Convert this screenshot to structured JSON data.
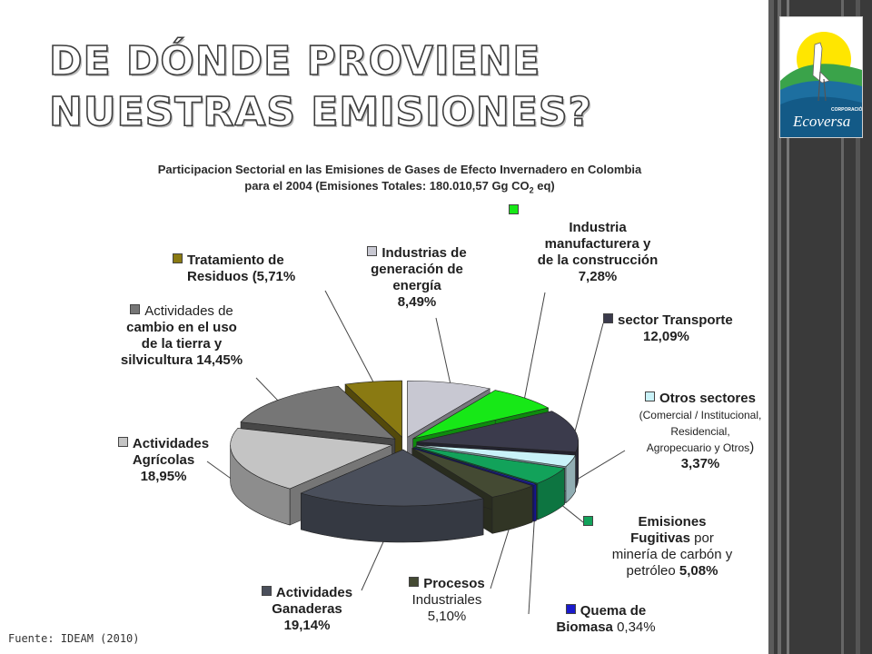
{
  "slide": {
    "title": "De dónde proviene nuestras emisiones?",
    "subtitle_line1": "Participacion Sectorial en las Emisiones de Gases de Efecto Invernadero en Colombia",
    "subtitle_line2_pre": "para el 2004 (Emisiones Totales: 180.010,57  Gg CO",
    "subtitle_sub": "2",
    "subtitle_line2_post": " eq)",
    "source": "Fuente: IDEAM (2010)",
    "logo_top": "CORPORACIÓN",
    "logo_name": "Ecoversa"
  },
  "colors": {
    "band": "#3a3a3a",
    "accent_green": "#7dc242",
    "accent_yellow": "#ffe600"
  },
  "chart_data": {
    "type": "pie",
    "title": "Participacion Sectorial en las Emisiones de Gases de Efecto Invernadero en Colombia para el 2004 (Emisiones Totales: 180.010,57 Gg CO2 eq)",
    "units": "%",
    "slices": [
      {
        "name": "Industrias de generación de energía",
        "value": 8.49,
        "color": "#c8c8d2"
      },
      {
        "name": "Industria manufacturera y de la construcción",
        "value": 7.28,
        "color": "#17e817"
      },
      {
        "name": "sector Transporte",
        "value": 12.09,
        "color": "#3b3b4c"
      },
      {
        "name": "Otros sectores (Comercial / Institucional, Residencial, Agropecuario y Otros)",
        "value": 3.37,
        "color": "#c9f2f8"
      },
      {
        "name": "Emisiones Fugitivas por minería de carbón y petróleo",
        "value": 5.08,
        "color": "#12a25a"
      },
      {
        "name": "Quema de Biomasa",
        "value": 0.34,
        "color": "#1a1acc"
      },
      {
        "name": "Procesos Industriales",
        "value": 5.1,
        "color": "#444a33"
      },
      {
        "name": "Actividades Ganaderas",
        "value": 19.14,
        "color": "#4a4f5b"
      },
      {
        "name": "Actividades Agrícolas",
        "value": 18.95,
        "color": "#c4c4c4"
      },
      {
        "name": "Actividades de cambio en el uso de la tierra y silvicultura",
        "value": 14.45,
        "color": "#767676"
      },
      {
        "name": "Tratamiento de Residuos",
        "value": 5.71,
        "color": "#8a7a12"
      }
    ],
    "labels": {
      "energia": {
        "l1": "Industrias de",
        "l2": "generación de",
        "l3": "energía",
        "l4": "8,49%"
      },
      "manufactura": {
        "l1": "Industria",
        "l2": "manufacturera y",
        "l3": "de la construcción",
        "l4": "7,28%"
      },
      "transporte": {
        "l1": "sector Transporte",
        "l2": "12,09%"
      },
      "otros": {
        "l1": "Otros sectores",
        "l2": "(Comercial / Institucional,",
        "l3": "Residencial,",
        "l4": "Agropecuario y Otros",
        "l4b": ")",
        "l5": "3,37%"
      },
      "fugitivas": {
        "l1": "Emisiones",
        "l2a": "Fugitivas",
        "l2b": " por",
        "l3": "minería de carbón y",
        "l4a": "petróleo ",
        "l4b": "5,08%"
      },
      "biomasa": {
        "l1": "Quema de",
        "l2a": "Biomasa ",
        "l2b": "0,34%"
      },
      "procesos": {
        "l1": "Procesos",
        "l2": "Industriales",
        "l3": "5,10%"
      },
      "ganaderas": {
        "l1": "Actividades",
        "l2": "Ganaderas",
        "l3": "19,14%"
      },
      "agricolas": {
        "l1": "Actividades",
        "l2": "Agrícolas",
        "l3": "18,95%"
      },
      "uso_tierra": {
        "l1": "Actividades de",
        "l2": "cambio en el uso",
        "l3": "de la tierra y",
        "l4": "silvicultura 14,45%"
      },
      "residuos": {
        "l1": "Tratamiento de",
        "l2a": "Residuos ",
        "l2b": "(5,71%"
      }
    }
  }
}
